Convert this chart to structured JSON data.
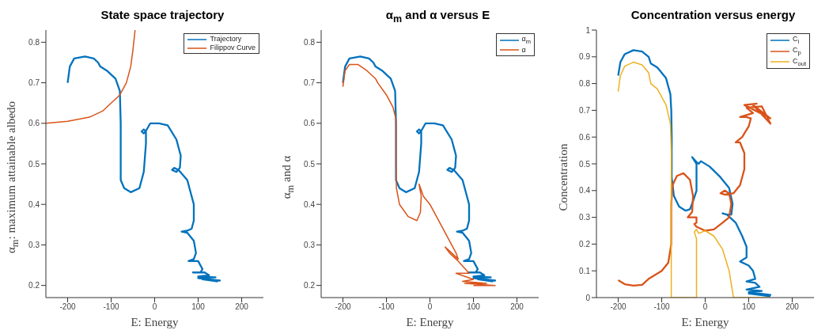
{
  "chart_data": [
    {
      "type": "line",
      "title": "State space trajectory",
      "xlabel": "E: Energy",
      "ylabel": "α$_{m}$: maximum attainable albedo",
      "xlim": [
        -250,
        250
      ],
      "xticks": [
        -200,
        -100,
        0,
        100,
        200
      ],
      "ylim": [
        0.17,
        0.83
      ],
      "yticks": [
        0.2,
        0.3,
        0.4,
        0.5,
        0.6,
        0.7,
        0.8
      ],
      "legend": "top right",
      "series": [
        {
          "name": "Trajectory",
          "color": "#0072bd",
          "x": [
            -200,
            -195,
            -185,
            -160,
            -140,
            -130,
            -125,
            -110,
            -90,
            -80,
            -78,
            -78,
            -78,
            -70,
            -55,
            -35,
            -25,
            -20,
            -20,
            -25,
            -30,
            -25,
            -18,
            -10,
            10,
            30,
            50,
            60,
            58,
            50,
            40,
            45,
            55,
            75,
            90,
            90,
            85,
            75,
            62,
            75,
            90,
            95,
            90,
            78,
            100,
            110,
            105,
            88,
            115,
            125,
            100,
            140,
            100,
            150,
            110,
            145
          ],
          "values": [
            0.7,
            0.74,
            0.76,
            0.765,
            0.76,
            0.75,
            0.74,
            0.73,
            0.71,
            0.68,
            0.6,
            0.5,
            0.46,
            0.44,
            0.43,
            0.44,
            0.48,
            0.55,
            0.58,
            0.585,
            0.58,
            0.575,
            0.585,
            0.6,
            0.6,
            0.595,
            0.56,
            0.52,
            0.49,
            0.48,
            0.485,
            0.49,
            0.485,
            0.46,
            0.4,
            0.36,
            0.34,
            0.335,
            0.333,
            0.33,
            0.31,
            0.28,
            0.265,
            0.26,
            0.26,
            0.24,
            0.232,
            0.232,
            0.232,
            0.225,
            0.222,
            0.22,
            0.218,
            0.212,
            0.215,
            0.21
          ]
        },
        {
          "name": "Filippov Curve",
          "color": "#d95319",
          "x": [
            -250,
            -200,
            -150,
            -120,
            -100,
            -80,
            -65,
            -55,
            -50,
            -45
          ],
          "values": [
            0.6,
            0.605,
            0.615,
            0.63,
            0.65,
            0.67,
            0.7,
            0.74,
            0.78,
            0.83
          ]
        }
      ]
    },
    {
      "type": "line",
      "title": "α$_{m}$ and α versus E",
      "xlabel": "E: Energy",
      "ylabel": "α$_{m}$ and α",
      "xlim": [
        -250,
        250
      ],
      "xticks": [
        -200,
        -100,
        0,
        100,
        200
      ],
      "ylim": [
        0.17,
        0.83
      ],
      "yticks": [
        0.2,
        0.3,
        0.4,
        0.5,
        0.6,
        0.7,
        0.8
      ],
      "legend": "top right",
      "series": [
        {
          "name": "α$_{m}$",
          "color": "#0072bd",
          "x": [
            -200,
            -195,
            -185,
            -160,
            -140,
            -130,
            -125,
            -110,
            -90,
            -80,
            -78,
            -78,
            -78,
            -70,
            -55,
            -35,
            -25,
            -20,
            -20,
            -25,
            -30,
            -25,
            -18,
            -10,
            10,
            30,
            50,
            60,
            58,
            50,
            40,
            45,
            55,
            75,
            90,
            90,
            85,
            75,
            62,
            75,
            90,
            95,
            90,
            78,
            100,
            110,
            105,
            88,
            115,
            125,
            100,
            140,
            100,
            150,
            110,
            145
          ],
          "values": [
            0.7,
            0.74,
            0.76,
            0.765,
            0.76,
            0.75,
            0.74,
            0.73,
            0.71,
            0.68,
            0.6,
            0.5,
            0.46,
            0.44,
            0.43,
            0.44,
            0.48,
            0.55,
            0.58,
            0.585,
            0.58,
            0.575,
            0.585,
            0.6,
            0.6,
            0.595,
            0.56,
            0.52,
            0.49,
            0.48,
            0.485,
            0.49,
            0.485,
            0.46,
            0.4,
            0.36,
            0.34,
            0.335,
            0.333,
            0.33,
            0.31,
            0.28,
            0.265,
            0.26,
            0.26,
            0.24,
            0.232,
            0.232,
            0.232,
            0.225,
            0.222,
            0.22,
            0.218,
            0.212,
            0.215,
            0.21
          ]
        },
        {
          "name": "α",
          "color": "#d95319",
          "x": [
            -200,
            -195,
            -185,
            -165,
            -145,
            -125,
            -120,
            -100,
            -85,
            -78,
            -78,
            -77,
            -70,
            -50,
            -30,
            -22,
            -20,
            -25,
            -15,
            0,
            20,
            40,
            60,
            65,
            50,
            35,
            45,
            65,
            90,
            60,
            100,
            75,
            130,
            80,
            150,
            100
          ],
          "values": [
            0.69,
            0.73,
            0.745,
            0.745,
            0.73,
            0.71,
            0.7,
            0.67,
            0.64,
            0.61,
            0.5,
            0.44,
            0.4,
            0.37,
            0.36,
            0.38,
            0.42,
            0.45,
            0.42,
            0.4,
            0.36,
            0.32,
            0.28,
            0.265,
            0.28,
            0.295,
            0.28,
            0.26,
            0.23,
            0.23,
            0.215,
            0.21,
            0.205,
            0.205,
            0.2,
            0.2
          ]
        }
      ]
    },
    {
      "type": "line",
      "title": "Concentration versus energy",
      "xlabel": "E: Energy",
      "ylabel": "Concentration",
      "xlim": [
        -250,
        250
      ],
      "xticks": [
        -200,
        -100,
        0,
        100,
        200
      ],
      "ylim": [
        0,
        1
      ],
      "yticks": [
        0,
        0.1,
        0.2,
        0.3,
        0.4,
        0.5,
        0.6,
        0.7,
        0.8,
        0.9,
        1
      ],
      "legend": "top right",
      "series": [
        {
          "name": "C$_{i}$",
          "color": "#0072bd",
          "x": [
            -200,
            -195,
            -185,
            -165,
            -145,
            -130,
            -125,
            -110,
            -90,
            -80,
            -78,
            -77,
            -77,
            -72,
            -60,
            -45,
            -35,
            -28,
            -20,
            -20,
            -28,
            -30,
            -22,
            -15,
            -10,
            10,
            35,
            55,
            63,
            60,
            50,
            40,
            50,
            70,
            85,
            95,
            95,
            80,
            100,
            110,
            115,
            95,
            115,
            125,
            95,
            130,
            100,
            150,
            100,
            150
          ],
          "values": [
            0.83,
            0.88,
            0.91,
            0.925,
            0.92,
            0.9,
            0.875,
            0.86,
            0.82,
            0.76,
            0.7,
            0.6,
            0.45,
            0.38,
            0.34,
            0.325,
            0.33,
            0.36,
            0.4,
            0.5,
            0.52,
            0.525,
            0.51,
            0.5,
            0.51,
            0.49,
            0.45,
            0.41,
            0.35,
            0.31,
            0.31,
            0.315,
            0.31,
            0.28,
            0.23,
            0.19,
            0.15,
            0.135,
            0.12,
            0.1,
            0.07,
            0.06,
            0.055,
            0.04,
            0.03,
            0.025,
            0.02,
            0.01,
            0.015,
            0.005
          ]
        },
        {
          "name": "C$_{p}$",
          "color": "#d95319",
          "x": [
            -200,
            -185,
            -165,
            -145,
            -130,
            -120,
            -100,
            -85,
            -78,
            -78,
            -75,
            -65,
            -50,
            -35,
            -28,
            -30,
            -40,
            -20,
            -20,
            -25,
            -20,
            0,
            20,
            40,
            55,
            60,
            55,
            45,
            35,
            45,
            65,
            80,
            90,
            90,
            80,
            70,
            85,
            100,
            105,
            95,
            80,
            110,
            95,
            130,
            150,
            110,
            150,
            90,
            120
          ],
          "values": [
            0.065,
            0.05,
            0.045,
            0.048,
            0.07,
            0.08,
            0.1,
            0.13,
            0.2,
            0.35,
            0.42,
            0.455,
            0.465,
            0.44,
            0.38,
            0.32,
            0.3,
            0.3,
            0.28,
            0.275,
            0.265,
            0.25,
            0.255,
            0.28,
            0.3,
            0.35,
            0.39,
            0.4,
            0.39,
            0.385,
            0.39,
            0.42,
            0.48,
            0.54,
            0.58,
            0.58,
            0.6,
            0.64,
            0.67,
            0.675,
            0.675,
            0.69,
            0.71,
            0.715,
            0.65,
            0.72,
            0.67,
            0.72,
            0.725
          ]
        },
        {
          "name": "C$_{out}$",
          "color": "#edb120",
          "x": [
            -200,
            -195,
            -185,
            -165,
            -145,
            -130,
            -125,
            -110,
            -90,
            -80,
            -78,
            -78,
            -78,
            -78,
            -20,
            -20,
            -25,
            -20,
            -15,
            0,
            20,
            40,
            55,
            63,
            65,
            150
          ],
          "values": [
            0.77,
            0.83,
            0.865,
            0.88,
            0.87,
            0.84,
            0.8,
            0.78,
            0.72,
            0.65,
            0.55,
            0.3,
            0.1,
            0,
            0,
            0.22,
            0.245,
            0.255,
            0.24,
            0.25,
            0.23,
            0.18,
            0.1,
            0.02,
            0,
            0
          ]
        }
      ]
    }
  ]
}
